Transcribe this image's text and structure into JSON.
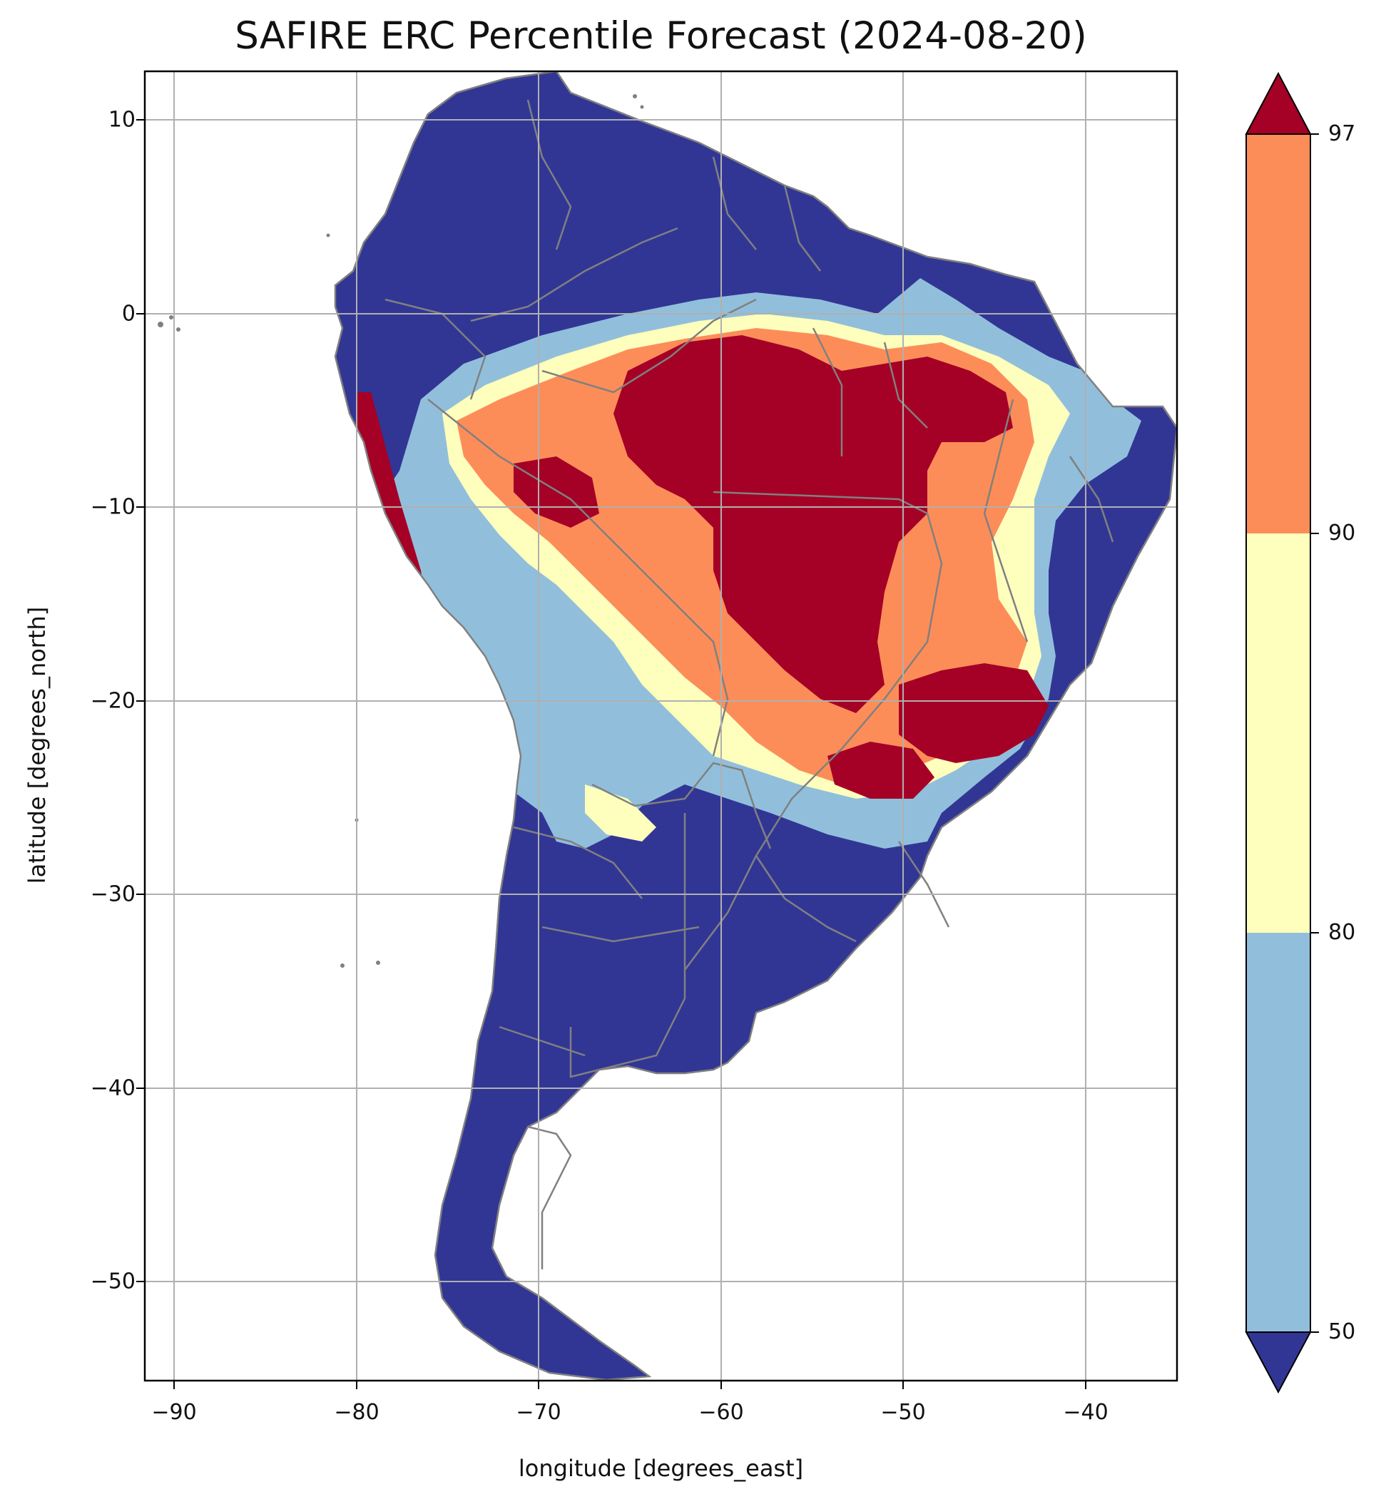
{
  "title": "SAFIRE ERC Percentile Forecast (2024-08-20)",
  "xlabel": "longitude [degrees_east]",
  "ylabel": "latitude [degrees_north]",
  "x_ticks": [
    "−90",
    "−80",
    "−70",
    "−60",
    "−50",
    "−40"
  ],
  "y_ticks": [
    "10",
    "0",
    "−10",
    "−20",
    "−30",
    "−40",
    "−50"
  ],
  "colorbar": {
    "ticks": [
      "50",
      "80",
      "90",
      "97"
    ],
    "extend": "both"
  },
  "colors": {
    "below_50": "#313695",
    "p50_80": "#91bfdb",
    "p80_90": "#fefebd",
    "p90_97": "#fc8d59",
    "above_97": "#a50026",
    "borders": "#808080",
    "grid": "#b0b0b0"
  },
  "chart_data": {
    "type": "heatmap",
    "title": "SAFIRE ERC Percentile Forecast (2024-08-20)",
    "xlabel": "longitude [degrees_east]",
    "ylabel": "latitude [degrees_north]",
    "xlim": [
      -91.6,
      -35.0
    ],
    "ylim": [
      -55.9,
      12.4
    ],
    "x_ticks": [
      -90,
      -80,
      -70,
      -60,
      -50,
      -40
    ],
    "y_ticks": [
      10,
      0,
      -10,
      -20,
      -30,
      -40,
      -50
    ],
    "grid": true,
    "colorbar": {
      "boundaries": [
        50,
        80,
        90,
        97
      ],
      "extend": "both",
      "location": "right",
      "colors": [
        "#313695",
        "#91bfdb",
        "#fefebd",
        "#fc8d59",
        "#a50026"
      ]
    }
  }
}
